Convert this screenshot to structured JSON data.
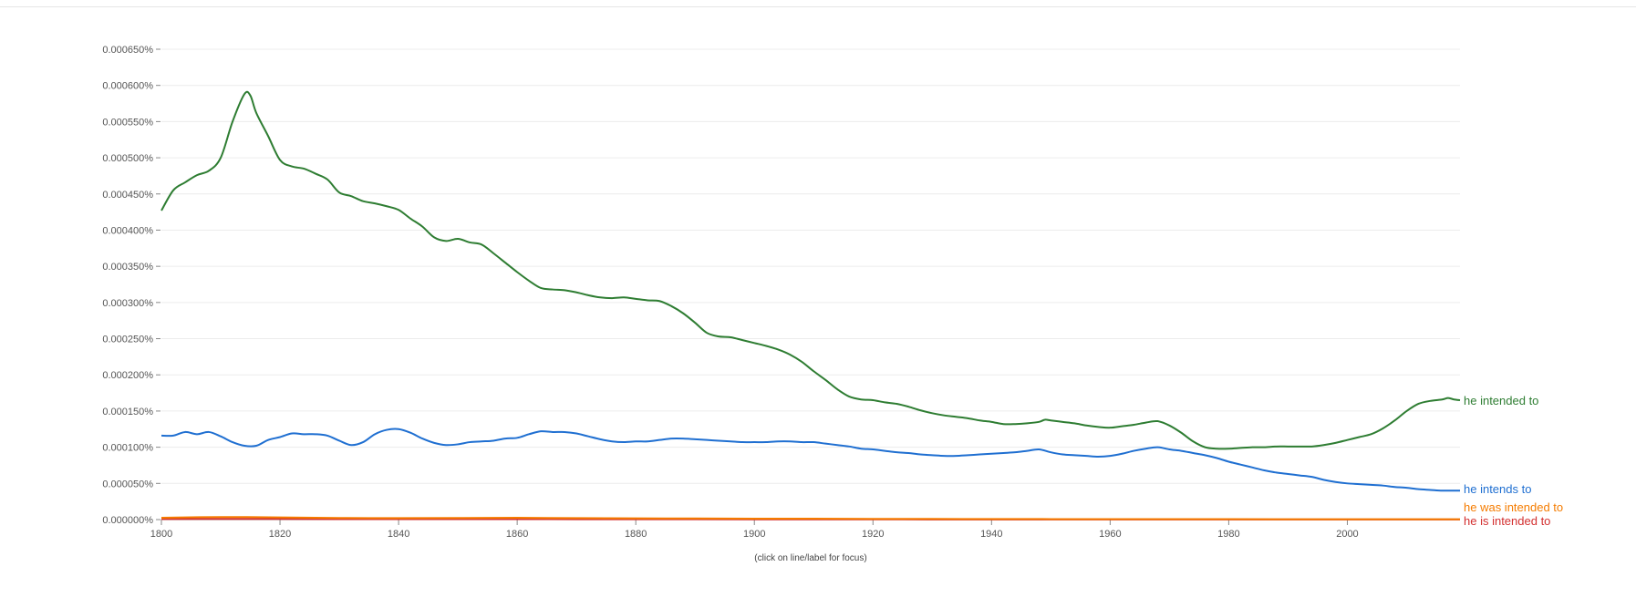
{
  "chart_data": {
    "type": "line",
    "title": "",
    "xlabel": "",
    "ylabel": "",
    "hint": "(click on line/label for focus)",
    "xlim": [
      1800,
      2019
    ],
    "ylim": [
      0,
      0.00065
    ],
    "x_ticks": [
      1800,
      1820,
      1840,
      1860,
      1880,
      1900,
      1920,
      1940,
      1960,
      1980,
      2000
    ],
    "x_tick_labels": [
      "1800",
      "1820",
      "1840",
      "1860",
      "1880",
      "1900",
      "1920",
      "1940",
      "1960",
      "1980",
      "2000"
    ],
    "y_ticks": [
      0,
      5e-05,
      0.0001,
      0.00015,
      0.0002,
      0.00025,
      0.0003,
      0.00035,
      0.0004,
      0.00045,
      0.0005,
      0.00055,
      0.0006,
      0.00065
    ],
    "y_tick_labels": [
      "0.000000%",
      "0.000050%",
      "0.000100%",
      "0.000150%",
      "0.000200%",
      "0.000250%",
      "0.000300%",
      "0.000350%",
      "0.000400%",
      "0.000450%",
      "0.000500%",
      "0.000550%",
      "0.000600%",
      "0.000650%"
    ],
    "series": [
      {
        "name": "he intended to",
        "color": "#2e7d32",
        "points": [
          [
            1800,
            0.000427
          ],
          [
            1802,
            0.000455
          ],
          [
            1804,
            0.000466
          ],
          [
            1806,
            0.000476
          ],
          [
            1808,
            0.000482
          ],
          [
            1810,
            0.0005
          ],
          [
            1812,
            0.00055
          ],
          [
            1814,
            0.000588
          ],
          [
            1815,
            0.000586
          ],
          [
            1816,
            0.000562
          ],
          [
            1818,
            0.00053
          ],
          [
            1820,
            0.000497
          ],
          [
            1822,
            0.000488
          ],
          [
            1824,
            0.000485
          ],
          [
            1826,
            0.000478
          ],
          [
            1828,
            0.00047
          ],
          [
            1830,
            0.000452
          ],
          [
            1832,
            0.000447
          ],
          [
            1834,
            0.00044
          ],
          [
            1836,
            0.000437
          ],
          [
            1838,
            0.000433
          ],
          [
            1840,
            0.000428
          ],
          [
            1842,
            0.000416
          ],
          [
            1844,
            0.000405
          ],
          [
            1846,
            0.00039
          ],
          [
            1848,
            0.000385
          ],
          [
            1850,
            0.000388
          ],
          [
            1852,
            0.000383
          ],
          [
            1854,
            0.00038
          ],
          [
            1856,
            0.000368
          ],
          [
            1858,
            0.000355
          ],
          [
            1860,
            0.000342
          ],
          [
            1862,
            0.00033
          ],
          [
            1864,
            0.00032
          ],
          [
            1866,
            0.000318
          ],
          [
            1868,
            0.000317
          ],
          [
            1870,
            0.000314
          ],
          [
            1872,
            0.00031
          ],
          [
            1874,
            0.000307
          ],
          [
            1876,
            0.000306
          ],
          [
            1878,
            0.000307
          ],
          [
            1880,
            0.000305
          ],
          [
            1882,
            0.000303
          ],
          [
            1884,
            0.000302
          ],
          [
            1886,
            0.000295
          ],
          [
            1888,
            0.000285
          ],
          [
            1890,
            0.000272
          ],
          [
            1892,
            0.000258
          ],
          [
            1894,
            0.000253
          ],
          [
            1896,
            0.000252
          ],
          [
            1898,
            0.000248
          ],
          [
            1900,
            0.000244
          ],
          [
            1902,
            0.00024
          ],
          [
            1904,
            0.000235
          ],
          [
            1906,
            0.000228
          ],
          [
            1908,
            0.000218
          ],
          [
            1910,
            0.000205
          ],
          [
            1912,
            0.000193
          ],
          [
            1914,
            0.00018
          ],
          [
            1916,
            0.00017
          ],
          [
            1918,
            0.000166
          ],
          [
            1920,
            0.000165
          ],
          [
            1922,
            0.000162
          ],
          [
            1924,
            0.00016
          ],
          [
            1926,
            0.000156
          ],
          [
            1928,
            0.000151
          ],
          [
            1930,
            0.000147
          ],
          [
            1932,
            0.000144
          ],
          [
            1934,
            0.000142
          ],
          [
            1936,
            0.00014
          ],
          [
            1938,
            0.000137
          ],
          [
            1940,
            0.000135
          ],
          [
            1942,
            0.000132
          ],
          [
            1944,
            0.000132
          ],
          [
            1946,
            0.000133
          ],
          [
            1948,
            0.000135
          ],
          [
            1949,
            0.000138
          ],
          [
            1950,
            0.000137
          ],
          [
            1952,
            0.000135
          ],
          [
            1954,
            0.000133
          ],
          [
            1956,
            0.00013
          ],
          [
            1958,
            0.000128
          ],
          [
            1960,
            0.000127
          ],
          [
            1962,
            0.000129
          ],
          [
            1964,
            0.000131
          ],
          [
            1966,
            0.000134
          ],
          [
            1968,
            0.000136
          ],
          [
            1970,
            0.00013
          ],
          [
            1972,
            0.00012
          ],
          [
            1974,
            0.000108
          ],
          [
            1976,
            0.0001
          ],
          [
            1978,
            9.8e-05
          ],
          [
            1980,
            9.8e-05
          ],
          [
            1982,
            9.9e-05
          ],
          [
            1984,
            0.0001
          ],
          [
            1986,
            0.0001
          ],
          [
            1988,
            0.000101
          ],
          [
            1990,
            0.000101
          ],
          [
            1992,
            0.000101
          ],
          [
            1994,
            0.000101
          ],
          [
            1996,
            0.000103
          ],
          [
            1998,
            0.000106
          ],
          [
            2000,
            0.00011
          ],
          [
            2002,
            0.000114
          ],
          [
            2004,
            0.000118
          ],
          [
            2006,
            0.000126
          ],
          [
            2008,
            0.000137
          ],
          [
            2010,
            0.00015
          ],
          [
            2012,
            0.00016
          ],
          [
            2014,
            0.000164
          ],
          [
            2016,
            0.000166
          ],
          [
            2017,
            0.000168
          ],
          [
            2018,
            0.000166
          ],
          [
            2019,
            0.000165
          ]
        ]
      },
      {
        "name": "he intends to",
        "color": "#1f6fd1",
        "points": [
          [
            1800,
            0.000116
          ],
          [
            1802,
            0.000116
          ],
          [
            1804,
            0.000121
          ],
          [
            1806,
            0.000118
          ],
          [
            1808,
            0.000121
          ],
          [
            1810,
            0.000115
          ],
          [
            1812,
            0.000107
          ],
          [
            1814,
            0.000102
          ],
          [
            1816,
            0.000102
          ],
          [
            1818,
            0.00011
          ],
          [
            1820,
            0.000114
          ],
          [
            1822,
            0.000119
          ],
          [
            1824,
            0.000118
          ],
          [
            1826,
            0.000118
          ],
          [
            1828,
            0.000116
          ],
          [
            1830,
            0.000109
          ],
          [
            1832,
            0.000103
          ],
          [
            1834,
            0.000107
          ],
          [
            1836,
            0.000118
          ],
          [
            1838,
            0.000124
          ],
          [
            1840,
            0.000125
          ],
          [
            1842,
            0.00012
          ],
          [
            1844,
            0.000112
          ],
          [
            1846,
            0.000106
          ],
          [
            1848,
            0.000103
          ],
          [
            1850,
            0.000104
          ],
          [
            1852,
            0.000107
          ],
          [
            1854,
            0.000108
          ],
          [
            1856,
            0.000109
          ],
          [
            1858,
            0.000112
          ],
          [
            1860,
            0.000113
          ],
          [
            1862,
            0.000118
          ],
          [
            1864,
            0.000122
          ],
          [
            1866,
            0.000121
          ],
          [
            1868,
            0.000121
          ],
          [
            1870,
            0.000119
          ],
          [
            1872,
            0.000115
          ],
          [
            1874,
            0.000111
          ],
          [
            1876,
            0.000108
          ],
          [
            1878,
            0.000107
          ],
          [
            1880,
            0.000108
          ],
          [
            1882,
            0.000108
          ],
          [
            1884,
            0.00011
          ],
          [
            1886,
            0.000112
          ],
          [
            1888,
            0.000112
          ],
          [
            1890,
            0.000111
          ],
          [
            1892,
            0.00011
          ],
          [
            1894,
            0.000109
          ],
          [
            1896,
            0.000108
          ],
          [
            1898,
            0.000107
          ],
          [
            1900,
            0.000107
          ],
          [
            1902,
            0.000107
          ],
          [
            1904,
            0.000108
          ],
          [
            1906,
            0.000108
          ],
          [
            1908,
            0.000107
          ],
          [
            1910,
            0.000107
          ],
          [
            1912,
            0.000105
          ],
          [
            1914,
            0.000103
          ],
          [
            1916,
            0.000101
          ],
          [
            1918,
            9.8e-05
          ],
          [
            1920,
            9.7e-05
          ],
          [
            1922,
            9.5e-05
          ],
          [
            1924,
            9.3e-05
          ],
          [
            1926,
            9.2e-05
          ],
          [
            1928,
            9e-05
          ],
          [
            1930,
            8.9e-05
          ],
          [
            1932,
            8.8e-05
          ],
          [
            1934,
            8.8e-05
          ],
          [
            1936,
            8.9e-05
          ],
          [
            1938,
            9e-05
          ],
          [
            1940,
            9.1e-05
          ],
          [
            1942,
            9.2e-05
          ],
          [
            1944,
            9.3e-05
          ],
          [
            1946,
            9.5e-05
          ],
          [
            1948,
            9.7e-05
          ],
          [
            1950,
            9.3e-05
          ],
          [
            1952,
            9e-05
          ],
          [
            1954,
            8.9e-05
          ],
          [
            1956,
            8.8e-05
          ],
          [
            1958,
            8.7e-05
          ],
          [
            1960,
            8.8e-05
          ],
          [
            1962,
            9.1e-05
          ],
          [
            1964,
            9.5e-05
          ],
          [
            1966,
            9.8e-05
          ],
          [
            1968,
            0.0001
          ],
          [
            1970,
            9.7e-05
          ],
          [
            1972,
            9.5e-05
          ],
          [
            1974,
            9.2e-05
          ],
          [
            1976,
            8.9e-05
          ],
          [
            1978,
            8.5e-05
          ],
          [
            1980,
            8e-05
          ],
          [
            1982,
            7.6e-05
          ],
          [
            1984,
            7.2e-05
          ],
          [
            1986,
            6.8e-05
          ],
          [
            1988,
            6.5e-05
          ],
          [
            1990,
            6.3e-05
          ],
          [
            1992,
            6.1e-05
          ],
          [
            1994,
            5.9e-05
          ],
          [
            1996,
            5.5e-05
          ],
          [
            1998,
            5.2e-05
          ],
          [
            2000,
            5e-05
          ],
          [
            2002,
            4.9e-05
          ],
          [
            2004,
            4.8e-05
          ],
          [
            2006,
            4.7e-05
          ],
          [
            2008,
            4.5e-05
          ],
          [
            2010,
            4.4e-05
          ],
          [
            2012,
            4.2e-05
          ],
          [
            2014,
            4.1e-05
          ],
          [
            2016,
            4e-05
          ],
          [
            2018,
            4e-05
          ],
          [
            2019,
            4e-05
          ]
        ]
      },
      {
        "name": "he was intended to",
        "color": "#f57c00",
        "points": [
          [
            1800,
            2.5e-06
          ],
          [
            1810,
            3.5e-06
          ],
          [
            1820,
            3e-06
          ],
          [
            1830,
            2.2e-06
          ],
          [
            1840,
            2e-06
          ],
          [
            1850,
            2.2e-06
          ],
          [
            1860,
            2.5e-06
          ],
          [
            1870,
            2e-06
          ],
          [
            1880,
            1.8e-06
          ],
          [
            1890,
            1.5e-06
          ],
          [
            1900,
            1.3e-06
          ],
          [
            1910,
            1.2e-06
          ],
          [
            1920,
            1e-06
          ],
          [
            1930,
            9e-07
          ],
          [
            1940,
            8e-07
          ],
          [
            1950,
            7e-07
          ],
          [
            1960,
            7e-07
          ],
          [
            1970,
            6e-07
          ],
          [
            1980,
            6e-07
          ],
          [
            1990,
            5e-07
          ],
          [
            2000,
            5e-07
          ],
          [
            2010,
            5e-07
          ],
          [
            2019,
            5e-07
          ]
        ]
      },
      {
        "name": "he is intended to",
        "color": "#d32f2f",
        "points": [
          [
            1800,
            8e-07
          ],
          [
            1810,
            1e-06
          ],
          [
            1820,
            9e-07
          ],
          [
            1830,
            7e-07
          ],
          [
            1840,
            6e-07
          ],
          [
            1850,
            6e-07
          ],
          [
            1860,
            6e-07
          ],
          [
            1870,
            5e-07
          ],
          [
            1880,
            4e-07
          ],
          [
            1890,
            4e-07
          ],
          [
            1900,
            3e-07
          ],
          [
            1910,
            3e-07
          ],
          [
            1920,
            3e-07
          ],
          [
            1930,
            2e-07
          ],
          [
            1940,
            2e-07
          ],
          [
            1950,
            2e-07
          ],
          [
            1960,
            2e-07
          ],
          [
            1970,
            2e-07
          ],
          [
            1980,
            2e-07
          ],
          [
            1990,
            2e-07
          ],
          [
            2000,
            2e-07
          ],
          [
            2010,
            2e-07
          ],
          [
            2019,
            2e-07
          ]
        ]
      }
    ]
  }
}
